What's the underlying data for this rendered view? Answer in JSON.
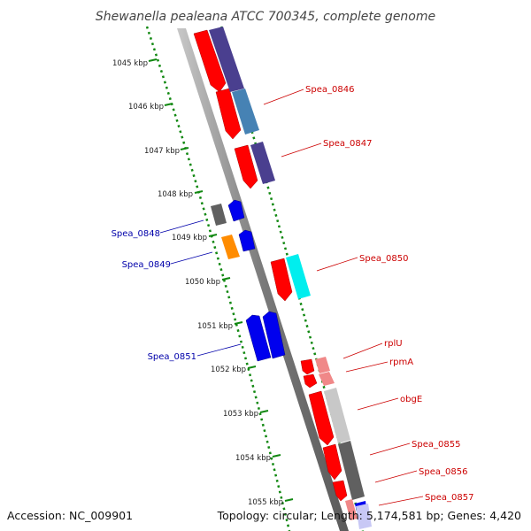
{
  "title": "Shewanella pealeana ATCC 700345, complete genome",
  "accession": "Accession: NC_009901",
  "topology": "Topology: circular; Length: 5,174,581 bp; Genes: 4,420",
  "ticks": [
    "1045 kbp",
    "1046 kbp",
    "1047 kbp",
    "1048 kbp",
    "1049 kbp",
    "1050 kbp",
    "1051 kbp",
    "1052 kbp",
    "1053 kbp",
    "1054 kbp",
    "1055 kbp"
  ],
  "colors": {
    "forward_label": "#cc0000",
    "reverse_label": "#0000aa",
    "axis": "#8a8a8a",
    "gc_dots": "#118811",
    "cds_forward": "#ff0000",
    "cds_reverse": "#0000ee",
    "cog_purple": "#4a3f8f",
    "cog_steelblue": "#4682b4",
    "cog_cyan": "#00eeee",
    "cog_pink": "#f08888",
    "cog_lightgray": "#c8c8c8",
    "cog_darkgray": "#606060",
    "cog_orange": "#ff8c00",
    "cog_lavender": "#c8c8f5"
  },
  "genes": [
    {
      "name": "Spea_0846",
      "strand": "forward"
    },
    {
      "name": "Spea_0847",
      "strand": "forward"
    },
    {
      "name": "Spea_0848",
      "strand": "reverse"
    },
    {
      "name": "Spea_0849",
      "strand": "reverse"
    },
    {
      "name": "Spea_0850",
      "strand": "forward"
    },
    {
      "name": "Spea_0851",
      "strand": "reverse"
    },
    {
      "name": "rplU",
      "strand": "forward"
    },
    {
      "name": "rpmA",
      "strand": "forward"
    },
    {
      "name": "obgE",
      "strand": "forward"
    },
    {
      "name": "Spea_0855",
      "strand": "forward"
    },
    {
      "name": "Spea_0856",
      "strand": "forward"
    },
    {
      "name": "Spea_0857",
      "strand": "forward"
    }
  ]
}
